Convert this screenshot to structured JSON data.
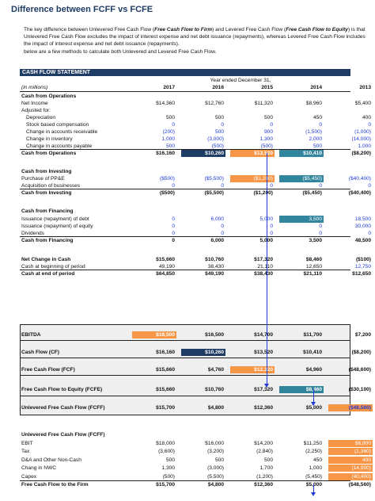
{
  "title": "Difference between FCFF vs FCFE",
  "intro": {
    "p1": "The key difference between Unlevered Free Cash Flow (",
    "fcff": "Free Cash Flow to Firm",
    "p2": ") and Levered Free Cash Flow (",
    "fcfe": "Free Cash Flow to Equity",
    "p3": ") is that Unlevered Free Cash Flow excludes the impact of interest expense and net debt issuance (repayments), whereas Levered Free Cash Flow includes the impact of interest expense and net debt issuance (repayments).",
    "p4": "below are a few methods to calculate both Unlevered and Levered Free Cash Flow."
  },
  "statement": {
    "header": "CASH FLOW STATEMENT",
    "year_ended": "Year ended December 31,",
    "units": "(in millions)",
    "years": [
      "2017",
      "2016",
      "2015",
      "2014",
      "2013"
    ]
  },
  "colors": {
    "navy": "#1f3c64",
    "orange": "#f79646",
    "teal": "#31859c",
    "blue": "#1f3ad6"
  },
  "sections": {
    "ops_title": "Cash from Operations",
    "net_income": {
      "label": "Net Income",
      "v": [
        "$14,360",
        "$12,760",
        "$11,320",
        "$8,960",
        "$5,400"
      ]
    },
    "adjusted": "Adjusted for:",
    "depreciation": {
      "label": "Depreciation",
      "v": [
        "500",
        "500",
        "500",
        "450",
        "400"
      ]
    },
    "sbc": {
      "label": "Stock based compensation",
      "v": [
        "0",
        "0",
        "0",
        "0",
        "0"
      ]
    },
    "ar": {
      "label": "Change in accounts receivable",
      "v": [
        "(200)",
        "500",
        "900",
        "(1,500)",
        "(1,000)"
      ]
    },
    "inv": {
      "label": "Change in inventory",
      "v": [
        "1,000",
        "(3,000)",
        "1,300",
        "2,000",
        "(14,000)"
      ]
    },
    "ap": {
      "label": "Change in accounts payable",
      "v": [
        "500",
        "(500)",
        "(500)",
        "500",
        "1,000"
      ]
    },
    "cfo": {
      "label": "Cash from Operations",
      "v": [
        "$16,160",
        "$10,260",
        "$13,520",
        "$10,410",
        "($8,200)"
      ]
    },
    "inv_title": "Cash from Investing",
    "ppe": {
      "label": "Purchase of PP&E",
      "v": [
        "($500)",
        "($5,500)",
        "($1,200)",
        "($5,450)",
        "($40,400)"
      ]
    },
    "acq": {
      "label": "Acquisition of businesses",
      "v": [
        "0",
        "0",
        "0",
        "0",
        "0"
      ]
    },
    "cfi": {
      "label": "Cash from Investing",
      "v": [
        "($500)",
        "($5,500)",
        "($1,200)",
        "($5,450)",
        "($40,400)"
      ]
    },
    "fin_title": "Cash from Financing",
    "debt": {
      "label": "Issuance (repayment) of debt",
      "v": [
        "0",
        "6,000",
        "5,000",
        "3,500",
        "18,500"
      ]
    },
    "equity": {
      "label": "Issuance (repayment) of equity",
      "v": [
        "0",
        "0",
        "0",
        "0",
        "30,000"
      ]
    },
    "div": {
      "label": "Dividends",
      "v": [
        "0",
        "0",
        "0",
        "0",
        "0"
      ]
    },
    "cff": {
      "label": "Cash from Financing",
      "v": [
        "0",
        "6,000",
        "5,000",
        "3,500",
        "48,500"
      ]
    },
    "net_change": {
      "label": "Net Change in Cash",
      "v": [
        "$15,660",
        "$10,760",
        "$17,320",
        "$8,460",
        "($100)"
      ]
    },
    "begin": {
      "label": "Cash at beginning of period",
      "v": [
        "49,190",
        "38,430",
        "21,110",
        "12,650",
        "12,750"
      ]
    },
    "end": {
      "label": "Cash at end of period",
      "v": [
        "$64,850",
        "$49,190",
        "$38,430",
        "$21,110",
        "$12,650"
      ]
    }
  },
  "summary": {
    "ebitda": {
      "label": "EBITDA",
      "v": [
        "$18,500",
        "$16,500",
        "$14,700",
        "$11,700",
        "$7,200"
      ]
    },
    "cf": {
      "label": "Cash Flow (CF)",
      "v": [
        "$16,160",
        "$10,260",
        "$13,520",
        "$10,410",
        "($8,200)"
      ]
    },
    "fcf": {
      "label": "Free Cash Flow (FCF)",
      "v": [
        "$15,660",
        "$4,760",
        "$12,320",
        "$4,960",
        "($48,600)"
      ]
    },
    "fcfe": {
      "label": "Free Cash Flow to Equity (FCFE)",
      "v": [
        "$15,660",
        "$10,760",
        "$17,320",
        "$8,460",
        "($30,100)"
      ]
    },
    "ufcf": {
      "label": "Unlevered Free Cash Flow (FCFF)",
      "v": [
        "$15,700",
        "$4,800",
        "$12,360",
        "$5,000",
        "($48,560)"
      ]
    }
  },
  "fcff_calc": {
    "title": "Unlevered Free Cash Flow (FCFF)",
    "ebit": {
      "label": "EBIT",
      "v": [
        "$18,000",
        "$16,000",
        "$14,200",
        "$11,250",
        "$6,800"
      ]
    },
    "tax": {
      "label": "Tax",
      "v": [
        "(3,600)",
        "(3,200)",
        "(2,840)",
        "(2,250)",
        "(1,360)"
      ]
    },
    "da": {
      "label": "D&A and Other Non-Cash",
      "v": [
        "500",
        "500",
        "500",
        "450",
        "400"
      ]
    },
    "nwc": {
      "label": "Chang in NWC",
      "v": [
        "1,300",
        "(3,000)",
        "1,700",
        "1,000",
        "(14,000)"
      ]
    },
    "capex": {
      "label": "Capex",
      "v": [
        "(500)",
        "(5,500)",
        "(1,200)",
        "(5,450)",
        "(40,400)"
      ]
    },
    "fcff": {
      "label": "Free Cash Flow to the Firm",
      "v": [
        "$15,700",
        "$4,800",
        "$12,360",
        "$5,000",
        "($48,560)"
      ]
    }
  }
}
